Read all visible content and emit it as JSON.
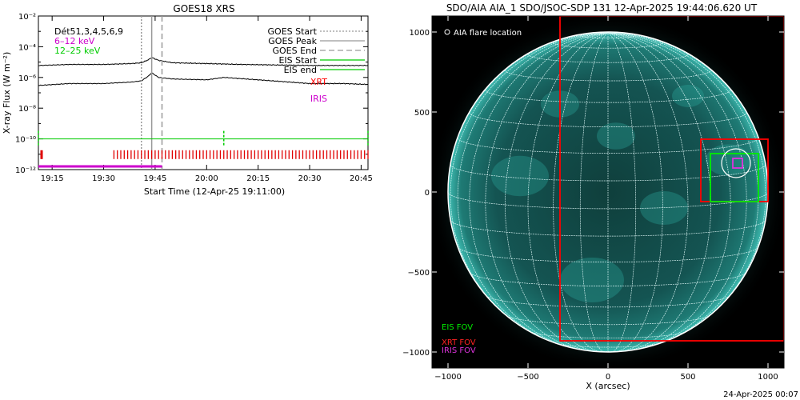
{
  "left_panel": {
    "title": "GOES18 XRS",
    "ylabel": "X-ray Flux (W m⁻²)",
    "xlabel": "Start Time (12-Apr-25 19:11:00)",
    "channels_label": "Dét51,3,4,5,6,9",
    "legend_left": [
      {
        "text": "6–12 keV",
        "color": "#cc00cc"
      },
      {
        "text": "12–25 keV",
        "color": "#00cc00"
      }
    ],
    "legend_right": [
      {
        "text": "GOES Start",
        "style": "dotted",
        "color": "#999999"
      },
      {
        "text": "GOES Peak",
        "style": "solid",
        "color": "#999999"
      },
      {
        "text": "GOES End",
        "style": "dashed",
        "color": "#999999"
      },
      {
        "text": "EIS Start",
        "style": "solid",
        "color": "#00cc00"
      },
      {
        "text": "EIS end",
        "style": "solid",
        "color": "#00cc00"
      }
    ],
    "legend_instruments": [
      {
        "text": "XRT",
        "color": "#ff0000"
      },
      {
        "text": "IRIS",
        "color": "#cc00cc"
      }
    ]
  },
  "right_panel": {
    "title": "SDO/AIA AIA_1 SDO/JSOC-SDP 131 12-Apr-2025 19:44:06.620 UT",
    "flare_label": "AIA flare location",
    "xlabel": "X (arcsec)",
    "fov_labels": [
      {
        "text": "EIS FOV",
        "color": "#00ee00"
      },
      {
        "text": "XRT FOV",
        "color": "#ff2222"
      },
      {
        "text": "IRIS FOV",
        "color": "#dd33dd"
      }
    ]
  },
  "footer": {
    "timestamp": "24-Apr-2025 00:07"
  },
  "chart_data": [
    {
      "type": "line",
      "title": "GOES18 XRS",
      "xlabel": "Start Time (12-Apr-25 19:11:00)",
      "ylabel": "X-ray Flux (W m⁻²)",
      "xlim": [
        "19:11",
        "20:47"
      ],
      "x_ticks": [
        "19:15",
        "19:30",
        "19:45",
        "20:00",
        "20:15",
        "20:30",
        "20:45"
      ],
      "y_scale": "log",
      "ylim": [
        1e-12,
        0.01
      ],
      "y_ticks": [
        "10⁻¹²",
        "10⁻¹⁰",
        "10⁻⁸",
        "10⁻⁶",
        "10⁻⁴",
        "10⁻²"
      ],
      "series": [
        {
          "color": "#000000",
          "x": [
            "19:11",
            "19:20",
            "19:30",
            "19:38",
            "19:41",
            "19:43",
            "19:44",
            "19:46",
            "19:50",
            "20:00",
            "20:10",
            "20:20",
            "20:30",
            "20:40",
            "20:47"
          ],
          "values": [
            6e-06,
            7e-06,
            7e-06,
            8e-06,
            9e-06,
            1.4e-05,
            2e-05,
            1.3e-05,
            9e-06,
            8e-06,
            7e-06,
            6.5e-06,
            6e-06,
            6e-06,
            6e-06
          ]
        },
        {
          "color": "#000000",
          "x": [
            "19:11",
            "19:20",
            "19:30",
            "19:38",
            "19:41",
            "19:43",
            "19:44",
            "19:46",
            "19:50",
            "20:00",
            "20:05",
            "20:15",
            "20:30",
            "20:40",
            "20:47"
          ],
          "values": [
            3e-07,
            4e-07,
            4e-07,
            5e-07,
            6e-07,
            1.2e-06,
            2e-06,
            1e-06,
            8e-07,
            7e-07,
            1e-06,
            7e-07,
            4e-07,
            4e-07,
            3.5e-07
          ]
        }
      ],
      "goes_start": "19:41",
      "goes_peak": "19:44",
      "goes_end": "19:47",
      "eis_level": 1e-10,
      "eis_marks": [
        "19:11",
        "20:05",
        "20:47"
      ],
      "xrt_level": 1e-11,
      "xrt_marks_start": "19:11",
      "xrt_range": [
        "19:33",
        "20:47"
      ],
      "iris_level": 1e-12,
      "iris_range": [
        "19:11",
        "19:47"
      ]
    },
    {
      "type": "scatter",
      "title": "SDO/AIA AIA_1 SDO/JSOC-SDP 131 12-Apr-2025 19:44:06.620 UT",
      "xlabel": "X (arcsec)",
      "xlim": [
        -1100,
        1100
      ],
      "ylim": [
        -1100,
        1100
      ],
      "x_ticks": [
        -1000,
        -500,
        0,
        500,
        1000
      ],
      "y_ticks": [
        -1000,
        -500,
        0,
        500,
        1000
      ],
      "solar_radius": 1000,
      "flare_location": {
        "x": 800,
        "y": 180
      },
      "fov_boxes": [
        {
          "name": "XRT FOV",
          "color": "#ff0000",
          "x": [
            -300,
            1100
          ],
          "y": [
            -930,
            1100
          ]
        },
        {
          "name": "XRT FOV",
          "color": "#ff0000",
          "x": [
            580,
            1000
          ],
          "y": [
            -60,
            330
          ]
        },
        {
          "name": "EIS FOV",
          "color": "#00ee00",
          "x": [
            640,
            940
          ],
          "y": [
            -60,
            240
          ]
        },
        {
          "name": "IRIS FOV",
          "color": "#dd33dd",
          "x": [
            780,
            840
          ],
          "y": [
            150,
            210
          ]
        }
      ]
    }
  ]
}
